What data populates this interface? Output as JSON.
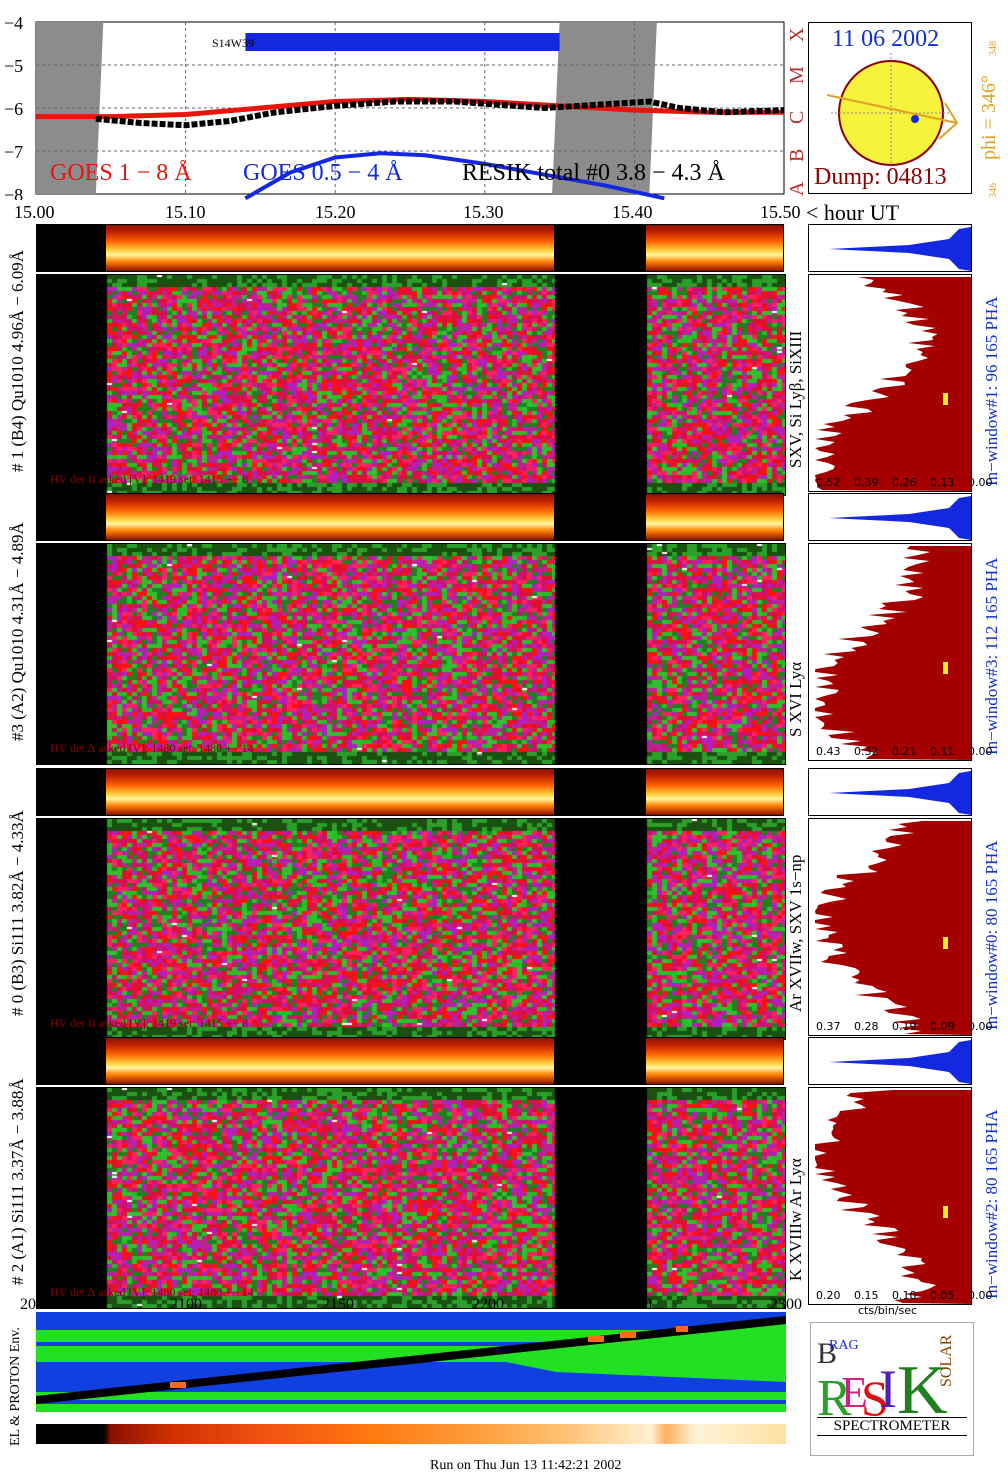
{
  "header": {
    "goes_label_1": "GOES 1 − 8 Å",
    "goes_label_2": "GOES 0.5 − 4 Å",
    "resik_label": "RESIK total #0  3.8 − 4.3 Å",
    "region_label": "S14W39",
    "date": "11 06 2002",
    "dump": "Dump: 04813",
    "phi_label": "phi = 346°",
    "phi_small_top": "348",
    "phi_small_bottom": "346",
    "class_letters": [
      "X",
      "M",
      "C",
      "B",
      "A"
    ],
    "colors": {
      "goes_long": "#e8150c",
      "goes_short": "#1428e0",
      "resik": "#000000",
      "dump": "#8b0000",
      "date": "#1030d0",
      "phi": "#e0a020"
    }
  },
  "time_axis": {
    "ticks": [
      "15.00",
      "15.10",
      "15.20",
      "15.30",
      "15.40",
      "15.50"
    ],
    "unit_label": "< hour UT"
  },
  "panels": [
    {
      "id": "det-b4",
      "ylabel": "# 1 (B4) Qu1010 4.96Å − 6.09Å",
      "line_label": "SXV, Si Lyβ, SiXIII",
      "window_label": "In−window#1:  96 165  PHA",
      "hv_label": "HV det B asked [V]:  1419 set:  1415  +−   8",
      "spec_ticks": [
        "0.52",
        "0.39",
        "0.26",
        "0.13",
        "0.00"
      ]
    },
    {
      "id": "det-a2",
      "ylabel": "#3 (A2) Qu1010  4.31Å − 4.89Å",
      "line_label": "S XVI Lyα",
      "window_label": "In−window#3:  112 165  PHA",
      "hv_label": "HV det A asked [V]:  1480 set:  1480  +−   14",
      "spec_ticks": [
        "0.43",
        "0.32",
        "0.21",
        "0.11",
        "0.00"
      ]
    },
    {
      "id": "det-b3",
      "ylabel": "# 0 (B3) Si111  3.82Å − 4.33Å",
      "line_label": "Ar XVIIw,  SXV 1s−np",
      "window_label": "In−window#0:  80 165  PHA",
      "hv_label": "HV det B asked [V]:  1419 set:  1415  +−   8",
      "spec_ticks": [
        "0.37",
        "0.28",
        "0.19",
        "0.09",
        "0.00"
      ]
    },
    {
      "id": "det-a1",
      "ylabel": "# 2 (A1) Si111  3.37Å − 3.88Å",
      "line_label": "K XVIIIw  Ar Lyα",
      "window_label": "In−window#2:  80 165  PHA",
      "hv_label": "HV det A asked [V]:  1480 set:  1480  +−   14",
      "spec_ticks": [
        "0.20",
        "0.15",
        "0.10",
        "0.05",
        "0.00"
      ]
    }
  ],
  "spectrum_xlabel": "cts/bin/sec",
  "env": {
    "label": "EL & PROTON Env.",
    "ticks": [
      "2050",
      "2100",
      "2150",
      "2200",
      "2250",
      "2300"
    ]
  },
  "logo": {
    "caption": "SPECTROMETER"
  },
  "footer": "Run on Thu Jun 13 11:42:21 2002",
  "chart_data": {
    "type": "line",
    "xlabel": "< hour UT",
    "x_ticks": [
      "15.00",
      "15.10",
      "15.20",
      "15.30",
      "15.40",
      "15.50"
    ],
    "y_ticks": [
      "−4",
      "−5",
      "−6",
      "−7",
      "−8"
    ],
    "ylim": [
      -8,
      -4
    ],
    "xlim": [
      15.0,
      15.5
    ],
    "series": [
      {
        "name": "GOES 1 − 8 Å",
        "x": [
          15.0,
          15.05,
          15.1,
          15.15,
          15.2,
          15.25,
          15.3,
          15.35,
          15.4,
          15.45,
          15.5
        ],
        "y": [
          -6.2,
          -6.2,
          -6.15,
          -6.0,
          -5.85,
          -5.8,
          -5.85,
          -5.95,
          -6.05,
          -6.1,
          -6.1
        ]
      },
      {
        "name": "GOES 0.5 − 4 Å",
        "x": [
          15.14,
          15.17,
          15.2,
          15.23,
          15.26,
          15.3,
          15.34,
          15.38,
          15.42
        ],
        "y": [
          -8.1,
          -7.5,
          -7.15,
          -7.05,
          -7.1,
          -7.3,
          -7.55,
          -7.8,
          -8.1
        ]
      },
      {
        "name": "RESIK total #0  3.8 − 4.3 Å",
        "x": [
          15.04,
          15.07,
          15.1,
          15.13,
          15.16,
          15.2,
          15.24,
          15.28,
          15.32,
          15.34,
          15.41,
          15.43,
          15.46,
          15.5
        ],
        "y": [
          -6.25,
          -6.35,
          -6.4,
          -6.3,
          -6.1,
          -5.95,
          -5.85,
          -5.85,
          -5.95,
          -6.0,
          -5.85,
          -6.0,
          -6.1,
          -6.05
        ]
      }
    ]
  }
}
